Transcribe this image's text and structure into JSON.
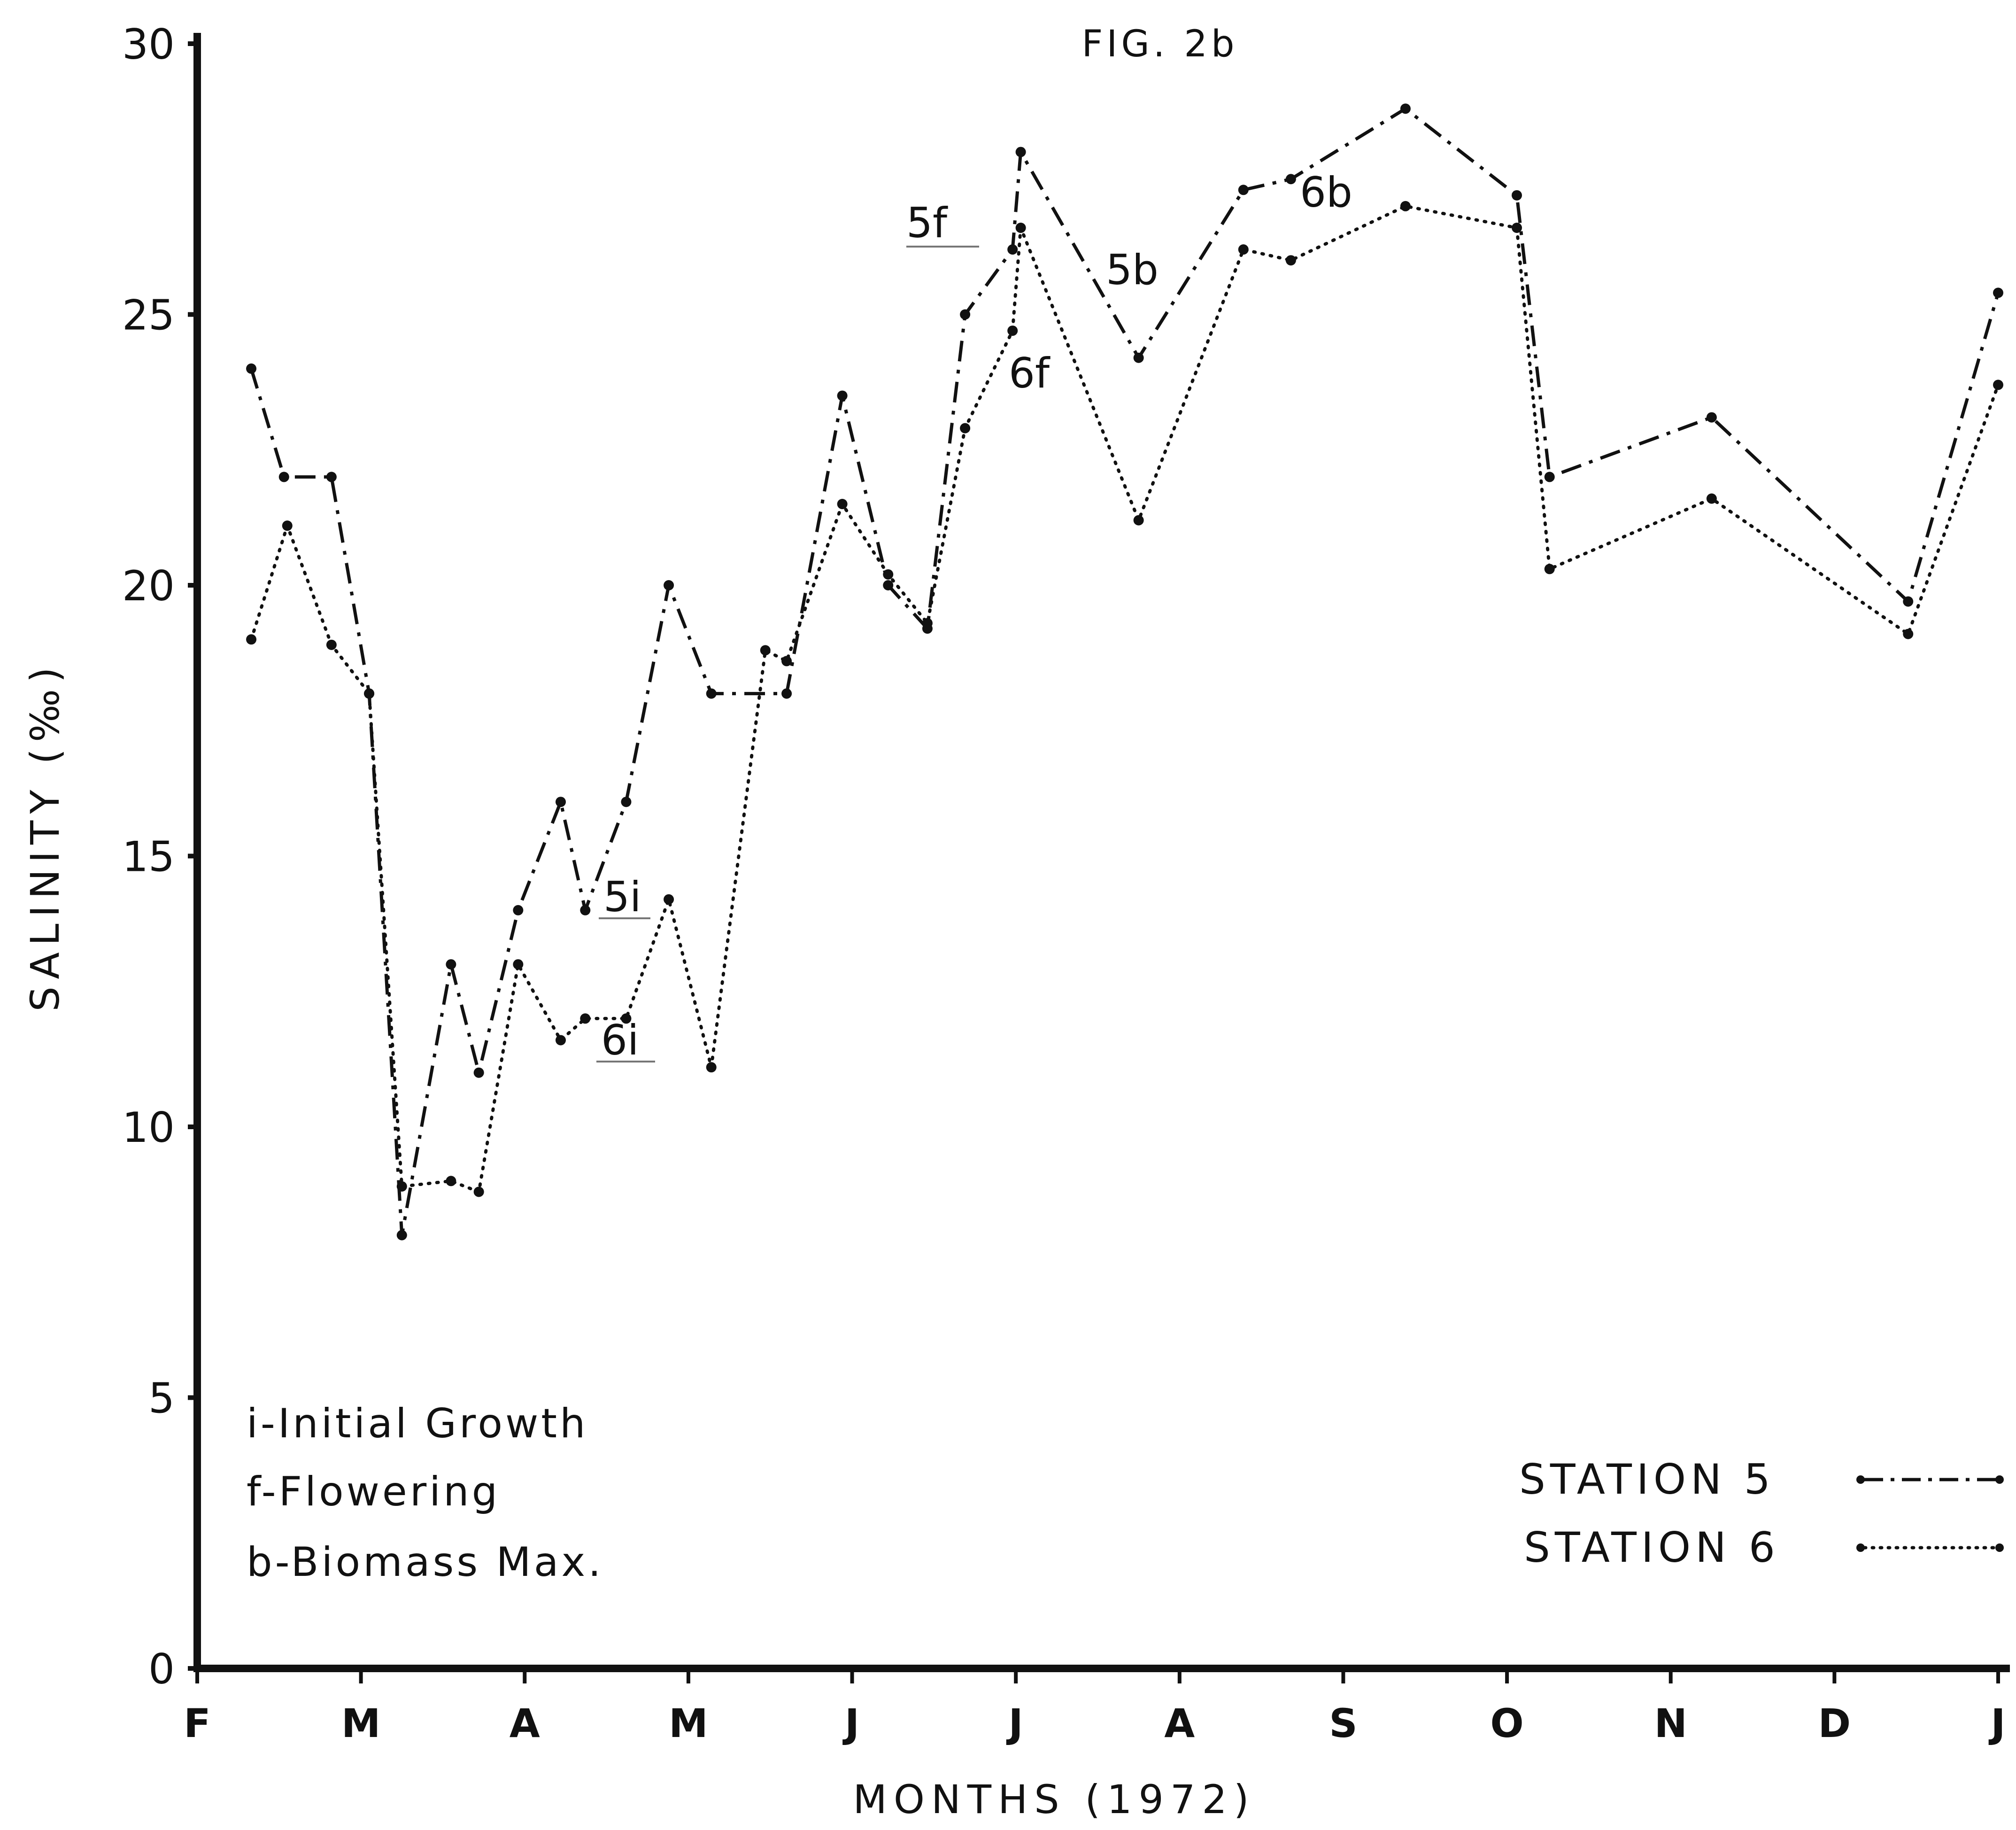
{
  "chart_data": {
    "type": "line",
    "title": "FIG. 2b",
    "xlabel": "MONTHS (1972)",
    "ylabel": "SALINITY (‰)",
    "ylim": [
      0,
      30
    ],
    "yticks": [
      0,
      5,
      10,
      15,
      20,
      25,
      30
    ],
    "xlim": [
      0,
      11
    ],
    "x_tick_labels": [
      "F",
      "M",
      "A",
      "M",
      "J",
      "J",
      "A",
      "S",
      "O",
      "N",
      "D",
      "J"
    ],
    "grid": false,
    "legend_position": "bottom-right",
    "series": [
      {
        "name": "STATION 5",
        "style": "dash-dot",
        "color": "#111111",
        "x": [
          0.33,
          0.53,
          0.82,
          1.05,
          1.25,
          1.55,
          1.72,
          1.96,
          2.22,
          2.37,
          2.62,
          2.88,
          3.14,
          3.6,
          3.94,
          4.22,
          4.46,
          4.69,
          4.98,
          5.03,
          5.75,
          6.39,
          6.68,
          7.38,
          8.06,
          8.26,
          9.25,
          10.45,
          11.0
        ],
        "y": [
          24.0,
          22.0,
          22.0,
          18.0,
          8.0,
          13.0,
          11.0,
          14.0,
          16.0,
          14.0,
          16.0,
          20.0,
          18.0,
          18.0,
          23.5,
          20.0,
          19.2,
          25.0,
          26.2,
          28.0,
          24.2,
          27.3,
          27.5,
          28.8,
          27.2,
          22.0,
          23.1,
          19.7,
          25.4
        ]
      },
      {
        "name": "STATION 6",
        "style": "dotted",
        "color": "#111111",
        "x": [
          0.33,
          0.55,
          0.82,
          1.05,
          1.25,
          1.55,
          1.72,
          1.96,
          2.22,
          2.37,
          2.62,
          2.88,
          3.14,
          3.47,
          3.6,
          3.94,
          4.22,
          4.46,
          4.69,
          4.98,
          5.03,
          5.75,
          6.39,
          6.68,
          7.38,
          8.06,
          8.26,
          9.25,
          10.45,
          11.0
        ],
        "y": [
          19.0,
          21.1,
          18.9,
          18.0,
          8.9,
          9.0,
          8.8,
          13.0,
          11.6,
          12.0,
          12.0,
          14.2,
          11.1,
          18.8,
          18.6,
          21.5,
          20.2,
          19.3,
          22.9,
          24.7,
          26.6,
          21.2,
          26.2,
          26.0,
          27.0,
          26.6,
          20.3,
          21.6,
          19.1,
          23.7
        ]
      }
    ],
    "annotations": [
      "5f",
      "6f",
      "5b",
      "6b",
      "5i",
      "6i"
    ],
    "legend": {
      "entries": [
        "STATION 5",
        "STATION 6"
      ]
    },
    "notes": [
      "i-Initial Growth",
      "f-Flowering",
      "b-Biomass Max."
    ]
  }
}
